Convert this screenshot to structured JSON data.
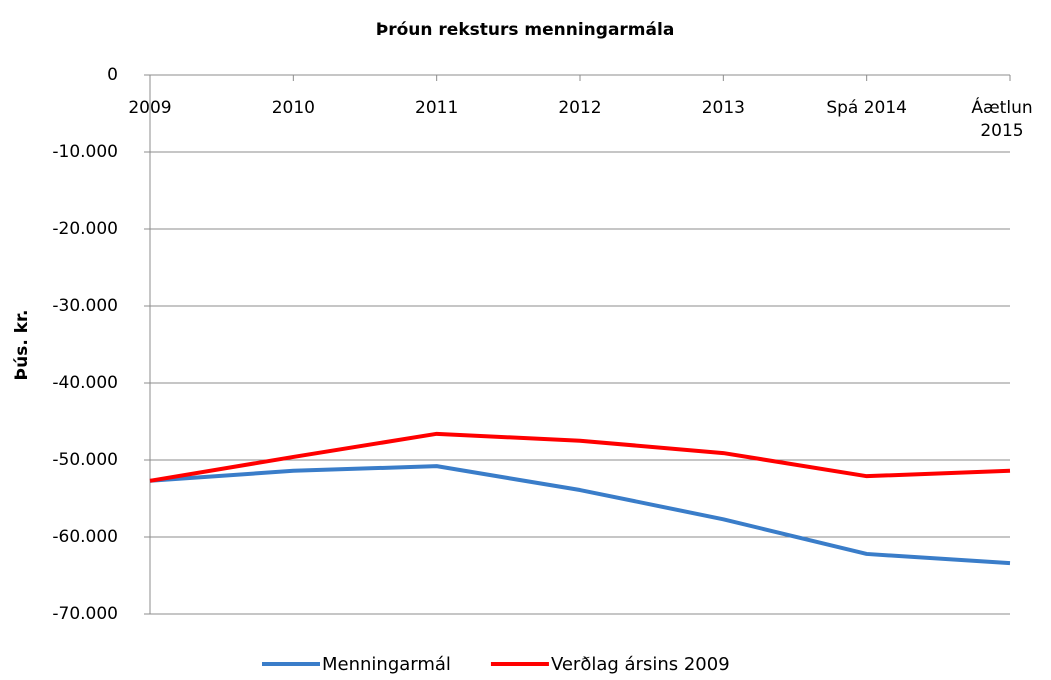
{
  "chart_data": {
    "type": "line",
    "title": "Þróun reksturs menningarmála",
    "y_label": "Þús. kr.",
    "categories": [
      "2009",
      "2010",
      "2011",
      "2012",
      "2013",
      "Spá 2014",
      "Áætlun 2015"
    ],
    "series": [
      {
        "name": "Menningarmál",
        "color": "#3a7dc9",
        "values": [
          -52700,
          -51400,
          -50800,
          -53900,
          -57700,
          -62200,
          -63400
        ]
      },
      {
        "name": "Verðlag ársins 2009",
        "color": "#ff0000",
        "values": [
          -52700,
          -49600,
          -46600,
          -47500,
          -49100,
          -52100,
          -51400
        ]
      }
    ],
    "ylim": [
      -70000,
      0
    ],
    "yticks": [
      0,
      {
        "value": -10000,
        "label": "-10.000"
      },
      {
        "value": -20000,
        "label": "-20.000"
      },
      {
        "value": -30000,
        "label": "-30.000"
      },
      {
        "value": -40000,
        "label": "-40.000"
      },
      {
        "value": -50000,
        "label": "-50.000"
      },
      {
        "value": -60000,
        "label": "-60.000"
      },
      {
        "value": -70000,
        "label": "-70.000"
      }
    ],
    "grid": true,
    "legend": "bottom"
  }
}
